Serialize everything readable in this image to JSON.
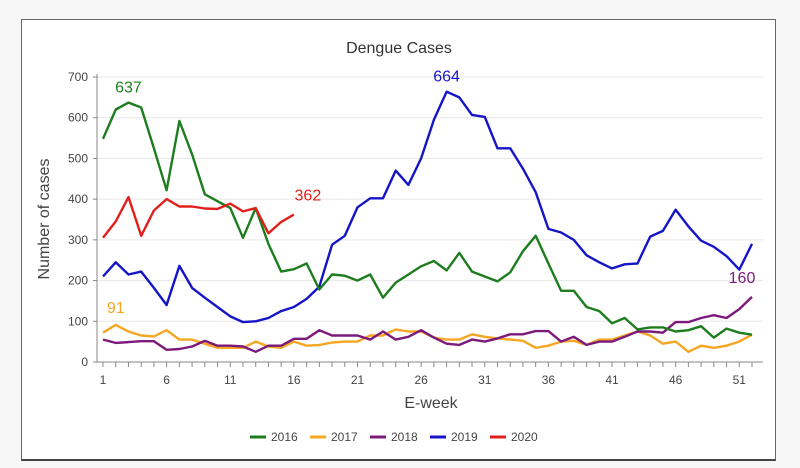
{
  "chart_data": {
    "type": "line",
    "title": "Dengue Cases",
    "xlabel": "E-week",
    "ylabel": "Number of cases",
    "xlim": [
      1,
      52
    ],
    "ylim": [
      0,
      700
    ],
    "x_ticks": [
      1,
      6,
      11,
      16,
      21,
      26,
      31,
      36,
      41,
      46,
      51
    ],
    "y_ticks": [
      0,
      100,
      200,
      300,
      400,
      500,
      600,
      700
    ],
    "grid": true,
    "legend_position": "bottom",
    "series": [
      {
        "name": "2016",
        "color": "#1e7d1e",
        "x": [
          1,
          2,
          3,
          4,
          5,
          6,
          7,
          8,
          9,
          10,
          11,
          12,
          13,
          14,
          15,
          16,
          17,
          18,
          19,
          20,
          21,
          22,
          23,
          24,
          25,
          26,
          27,
          28,
          29,
          30,
          31,
          32,
          33,
          34,
          35,
          36,
          37,
          38,
          39,
          40,
          41,
          42,
          43,
          44,
          45,
          46,
          47,
          48,
          49,
          50,
          51,
          52
        ],
        "values": [
          548,
          620,
          637,
          625,
          525,
          422,
          592,
          510,
          412,
          395,
          378,
          305,
          378,
          290,
          222,
          228,
          242,
          178,
          215,
          212,
          200,
          215,
          158,
          195,
          215,
          235,
          248,
          225,
          268,
          222,
          210,
          198,
          220,
          272,
          310,
          242,
          175,
          175,
          135,
          125,
          95,
          108,
          80,
          85,
          85,
          75,
          78,
          88,
          60,
          82,
          72,
          67
        ]
      },
      {
        "name": "2017",
        "color": "#f5a623",
        "x": [
          1,
          2,
          3,
          4,
          5,
          6,
          7,
          8,
          9,
          10,
          11,
          12,
          13,
          14,
          15,
          16,
          17,
          18,
          19,
          20,
          21,
          22,
          23,
          24,
          25,
          26,
          27,
          28,
          29,
          30,
          31,
          32,
          33,
          34,
          35,
          36,
          37,
          38,
          39,
          40,
          41,
          42,
          43,
          44,
          45,
          46,
          47,
          48,
          49,
          50,
          51,
          52
        ],
        "values": [
          72,
          91,
          75,
          65,
          63,
          78,
          55,
          55,
          45,
          35,
          35,
          35,
          50,
          38,
          35,
          50,
          40,
          42,
          48,
          50,
          50,
          65,
          65,
          80,
          75,
          75,
          60,
          55,
          55,
          68,
          62,
          58,
          55,
          52,
          35,
          40,
          50,
          52,
          42,
          55,
          55,
          65,
          75,
          65,
          45,
          50,
          25,
          40,
          35,
          40,
          50,
          67
        ]
      },
      {
        "name": "2018",
        "color": "#7b1a7b",
        "x": [
          1,
          2,
          3,
          4,
          5,
          6,
          7,
          8,
          9,
          10,
          11,
          12,
          13,
          14,
          15,
          16,
          17,
          18,
          19,
          20,
          21,
          22,
          23,
          24,
          25,
          26,
          27,
          28,
          29,
          30,
          31,
          32,
          33,
          34,
          35,
          36,
          37,
          38,
          39,
          40,
          41,
          42,
          43,
          44,
          45,
          46,
          47,
          48,
          49,
          50,
          51,
          52
        ],
        "values": [
          55,
          47,
          49,
          51,
          51,
          30,
          32,
          38,
          52,
          40,
          40,
          38,
          25,
          40,
          40,
          57,
          57,
          78,
          65,
          65,
          65,
          55,
          75,
          55,
          62,
          78,
          60,
          45,
          42,
          55,
          50,
          58,
          68,
          68,
          76,
          76,
          50,
          62,
          42,
          50,
          50,
          62,
          75,
          75,
          72,
          98,
          98,
          108,
          115,
          108,
          130,
          160
        ]
      },
      {
        "name": "2019",
        "color": "#1515c8",
        "x": [
          1,
          2,
          3,
          4,
          5,
          6,
          7,
          8,
          9,
          10,
          11,
          12,
          13,
          14,
          15,
          16,
          17,
          18,
          19,
          20,
          21,
          22,
          23,
          24,
          25,
          26,
          27,
          28,
          29,
          30,
          31,
          32,
          33,
          34,
          35,
          36,
          37,
          38,
          39,
          40,
          41,
          42,
          43,
          44,
          45,
          46,
          47,
          48,
          49,
          50,
          51,
          52
        ],
        "values": [
          210,
          245,
          215,
          222,
          182,
          140,
          236,
          182,
          158,
          135,
          112,
          98,
          100,
          108,
          125,
          135,
          155,
          185,
          288,
          310,
          380,
          402,
          402,
          470,
          435,
          500,
          595,
          664,
          650,
          607,
          602,
          525,
          525,
          475,
          417,
          327,
          318,
          300,
          262,
          245,
          230,
          240,
          242,
          308,
          322,
          374,
          333,
          298,
          283,
          260,
          227,
          290
        ]
      },
      {
        "name": "2020",
        "color": "#e0201c",
        "x": [
          1,
          2,
          3,
          4,
          5,
          6,
          7,
          8,
          9,
          10,
          11,
          12,
          13,
          14,
          15,
          16
        ],
        "values": [
          305,
          345,
          405,
          310,
          372,
          400,
          382,
          382,
          377,
          376,
          389,
          370,
          378,
          316,
          344,
          362
        ]
      }
    ],
    "annotations": [
      {
        "text": "637",
        "series": "2016",
        "x": 3,
        "y": 637
      },
      {
        "text": "91",
        "series": "2017",
        "x": 2,
        "y": 91
      },
      {
        "text": "664",
        "series": "2019",
        "x": 28,
        "y": 664
      },
      {
        "text": "362",
        "series": "2020",
        "x": 16,
        "y": 362
      },
      {
        "text": "160",
        "series": "2018",
        "x": 52,
        "y": 160
      }
    ]
  }
}
